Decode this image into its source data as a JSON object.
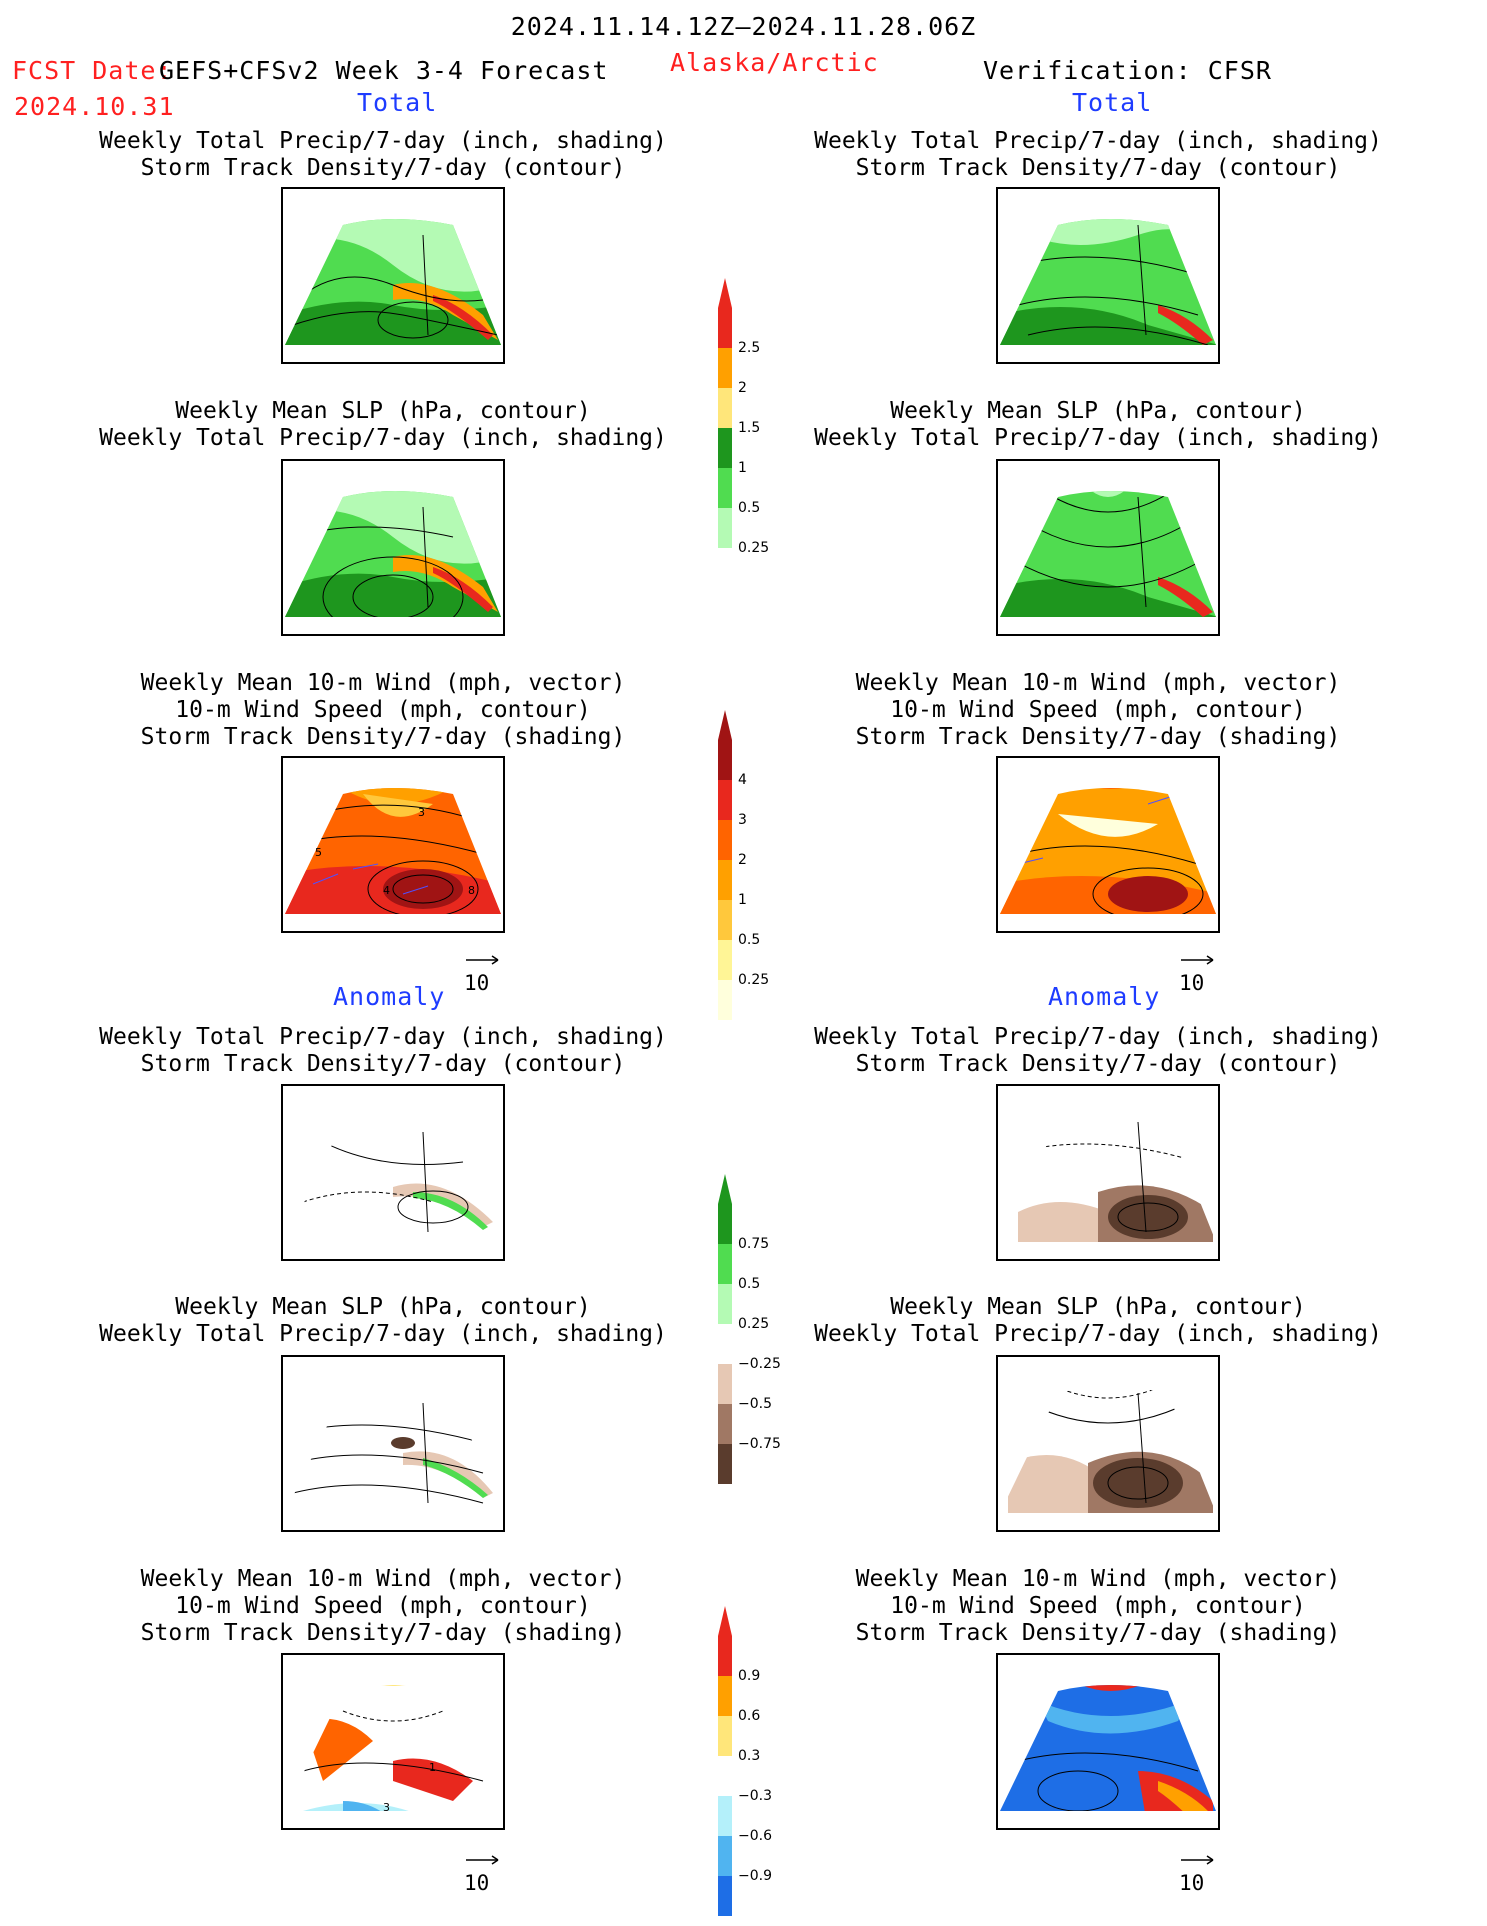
{
  "header": {
    "period": "2024.11.14.12Z–2024.11.28.06Z",
    "fcst_label": "FCST Date:",
    "model": "GEFS+CFSv2 Week 3-4 Forecast",
    "fcst_date": "2024.10.31",
    "region": "Alaska/Arctic",
    "verification": "Verification: CFSR"
  },
  "sections": {
    "total": "Total",
    "anomaly": "Anomaly"
  },
  "titles": {
    "precip_storm": "Weekly Total Precip/7-day (inch, shading)\nStorm Track Density/7-day (contour)",
    "slp_precip": "Weekly Mean SLP (hPa, contour)\nWeekly Total Precip/7-day (inch, shading)",
    "wind_storm": "Weekly Mean 10-m Wind (mph, vector)\n10-m Wind Speed (mph, contour)\nStorm Track Density/7-day (shading)"
  },
  "vector_ref": "10",
  "panel_labels": {
    "fc_total_wind": [
      "3",
      "5",
      "4",
      "8"
    ],
    "fc_anom_wind": [
      "1",
      "3"
    ]
  },
  "colorbars": {
    "precip_total": {
      "labels": [
        "2.5",
        "2",
        "1.5",
        "1",
        "0.5",
        "0.25"
      ],
      "colors": [
        "#e8281e",
        "#ffa000",
        "#ffe67a",
        "#1e961e",
        "#50dc50",
        "#b4fab4"
      ]
    },
    "storm_total": {
      "labels": [
        "4",
        "3",
        "2",
        "1",
        "0.5",
        "0.25"
      ],
      "colors": [
        "#a01414",
        "#e8281e",
        "#ff6400",
        "#ffa000",
        "#ffc83c",
        "#fff596",
        "#ffffdc"
      ]
    },
    "precip_anom": {
      "labels": [
        "0.75",
        "0.5",
        "0.25",
        "−0.25",
        "−0.5",
        "−0.75"
      ],
      "colors": [
        "#1e961e",
        "#50dc50",
        "#b4fab4",
        "#ffffff",
        "#e6c8b4",
        "#a07864",
        "#5a3c2d"
      ]
    },
    "storm_anom": {
      "labels": [
        "0.9",
        "0.6",
        "0.3",
        "−0.3",
        "−0.6",
        "−0.9"
      ],
      "colors": [
        "#e8281e",
        "#ffa000",
        "#ffe67a",
        "#ffffff",
        "#b4f0fa",
        "#50b4f0",
        "#1e6ee6"
      ]
    }
  }
}
